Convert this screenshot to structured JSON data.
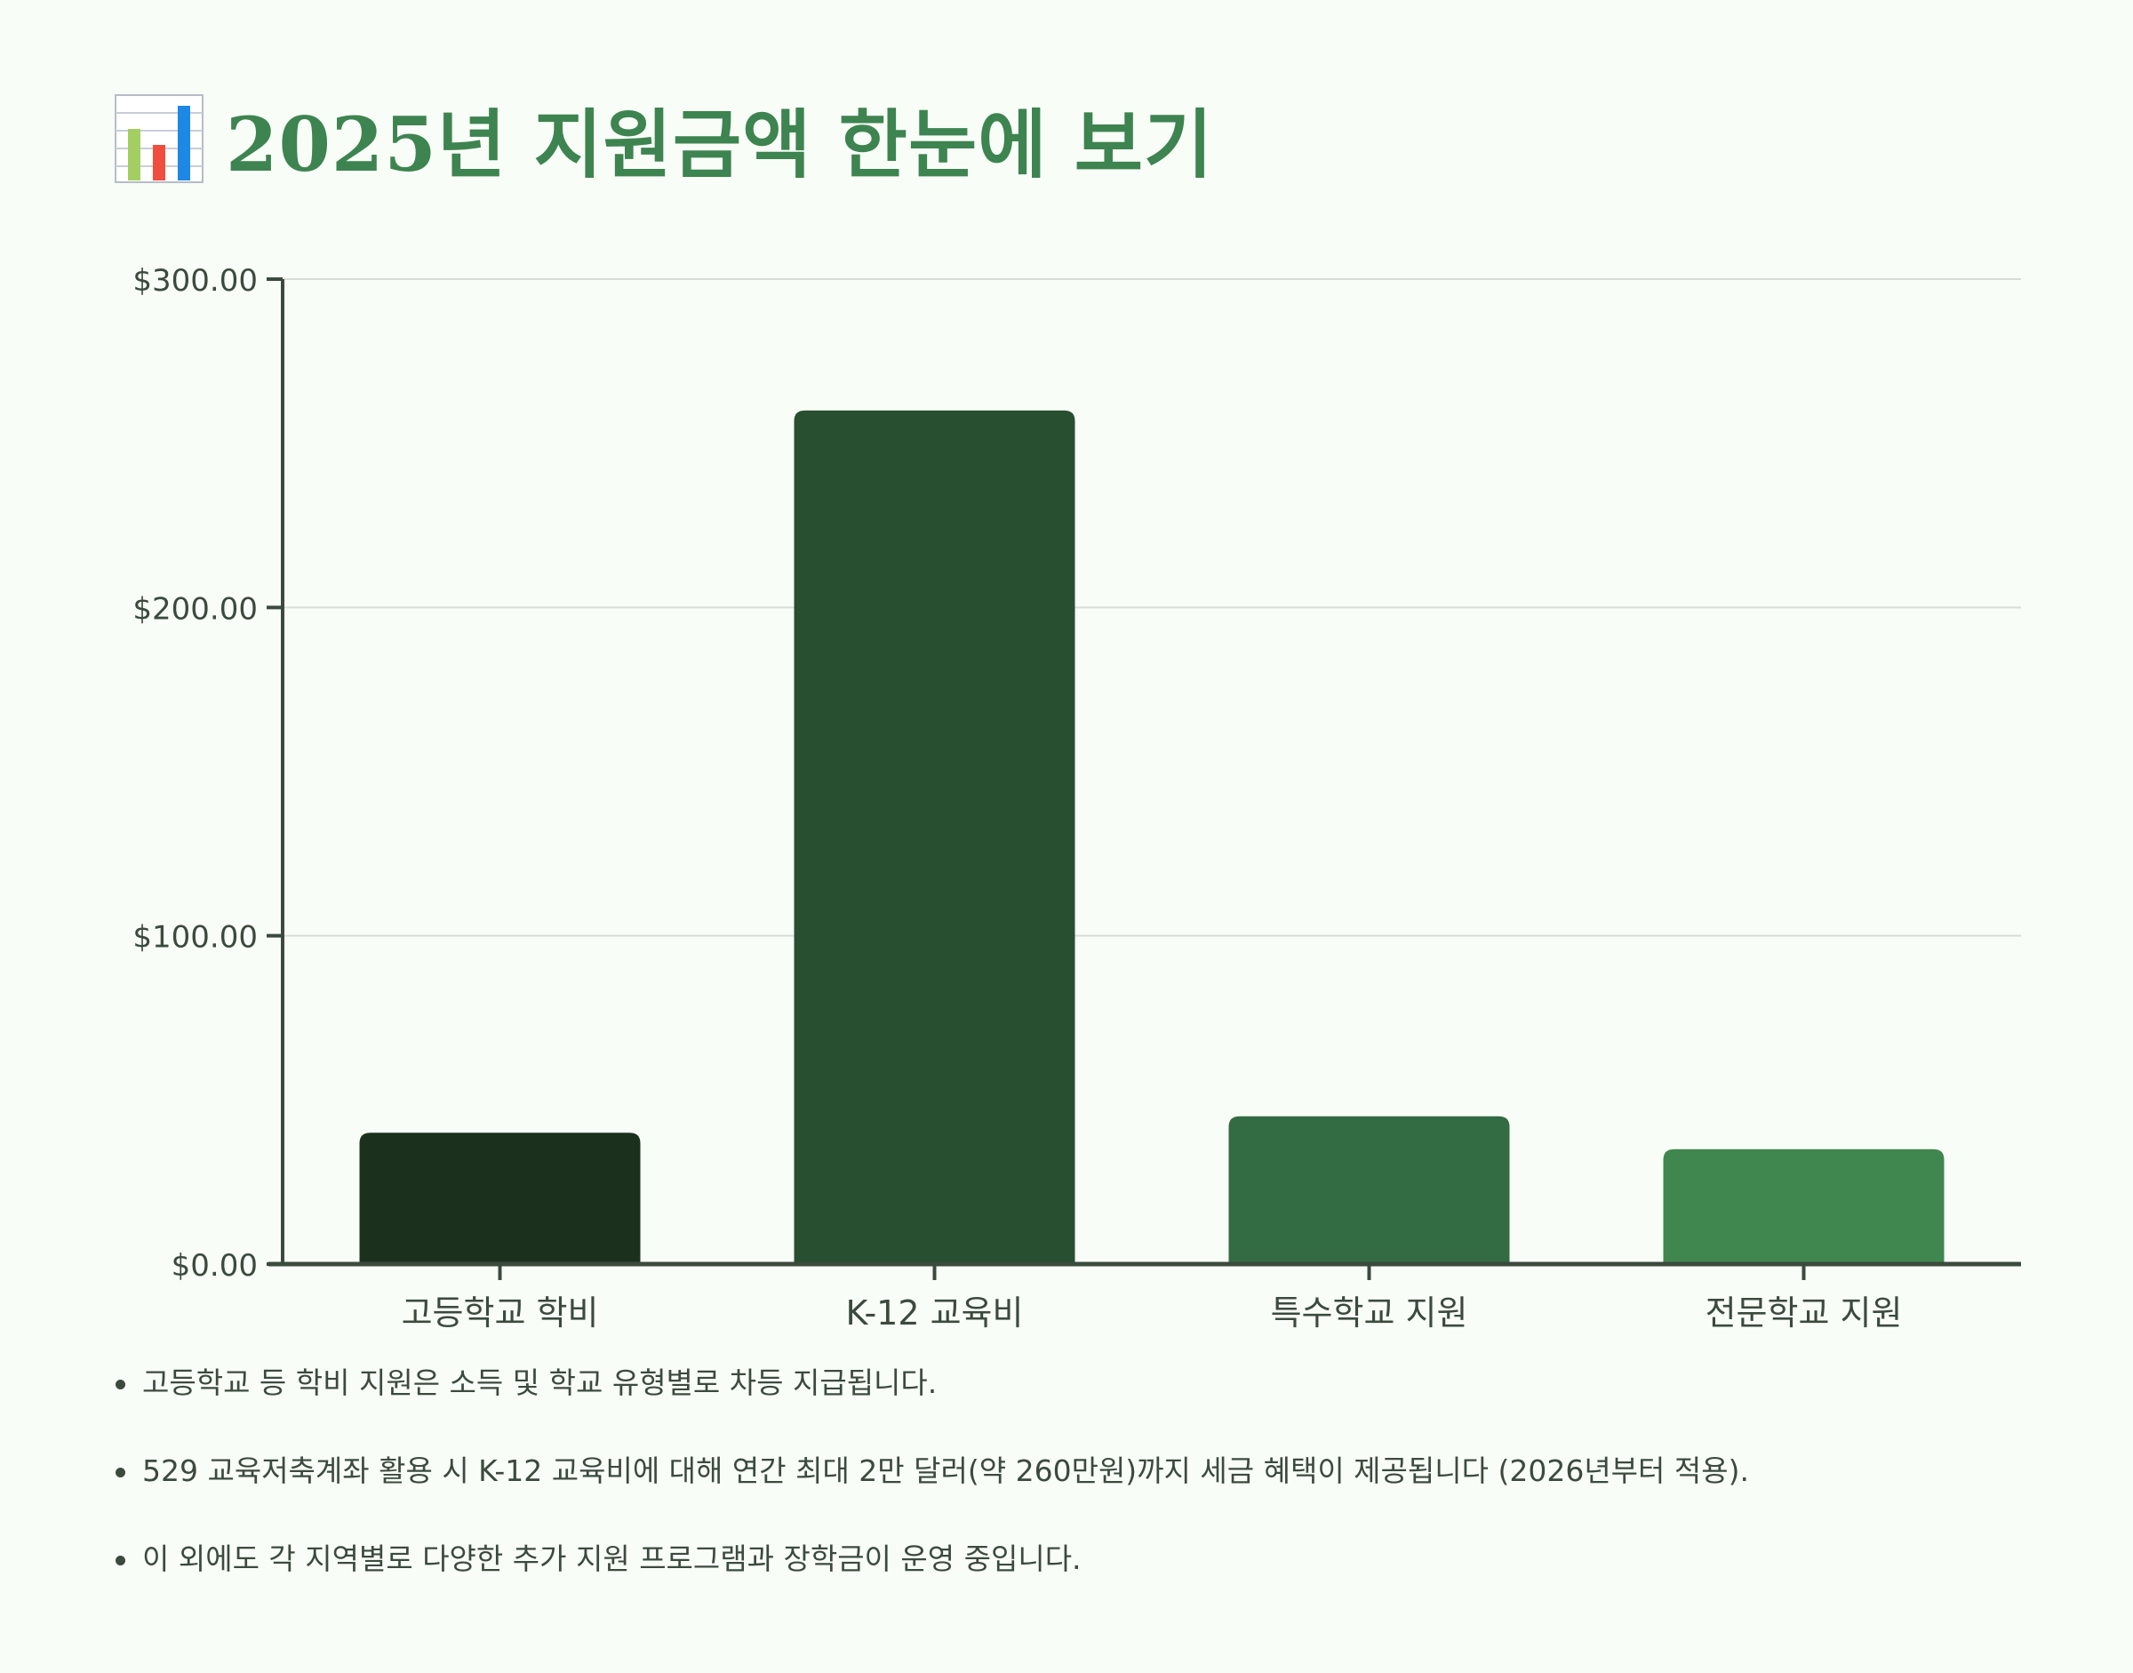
{
  "title": "2025년 지원금액 한눈에 보기",
  "title_icon": "bar-chart-icon",
  "colors": {
    "background": "#f9fdf7",
    "title": "#3d8450",
    "axis": "#3c4a3e",
    "grid": "#d9ddd8",
    "text": "#3c4a3e",
    "icon_bar_1": "#a3cf62",
    "icon_bar_2": "#f04e3e",
    "icon_bar_3": "#1e88e5"
  },
  "chart_data": {
    "type": "bar",
    "categories": [
      "고등학교 학비",
      "K-12 교육비",
      "특수학교 지원",
      "전문학교 지원"
    ],
    "values": [
      40,
      260,
      45,
      35
    ],
    "bar_colors": [
      "#1b311e",
      "#274f30",
      "#336b42",
      "#40864f"
    ],
    "ylim": [
      0,
      300
    ],
    "y_ticks": [
      0,
      100,
      200,
      300
    ],
    "y_tick_labels": [
      "$0.00",
      "$100.00",
      "$200.00",
      "$300.00"
    ],
    "title": "",
    "xlabel": "",
    "ylabel": "",
    "grid": true,
    "legend": "none"
  },
  "notes": [
    "고등학교 등 학비 지원은 소득 및 학교 유형별로 차등 지급됩니다.",
    "529 교육저축계좌 활용 시 K-12 교육비에 대해 연간 최대 2만 달러(약 260만원)까지 세금 혜택이 제공됩니다 (2026년부터 적용).",
    "이 외에도 각 지역별로 다양한 추가 지원 프로그램과 장학금이 운영 중입니다."
  ]
}
